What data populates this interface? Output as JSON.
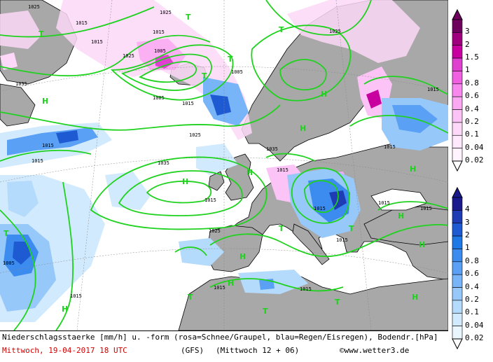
{
  "footer": {
    "title": "Niederschlagsstaerke [mm/h] u. -form (rosa=Schnee/Graupel, blau=Regen/Eisregen), Bodendr.[hPa]",
    "date": "Mittwoch, 19-04-2017  18 UTC",
    "model": "(GFS)",
    "run": "(Mittwoch 12 + 06)",
    "copyright": "©www.wetter3.de"
  },
  "legend_snow": {
    "labels": [
      "3",
      "2",
      "1.5",
      "1",
      "0.8",
      "0.6",
      "0.4",
      "0.2",
      "0.1",
      "0.04",
      "0.02"
    ],
    "colors": [
      "#6e005e",
      "#a0007e",
      "#c800a0",
      "#e040d0",
      "#f060e0",
      "#f888ee",
      "#faa8f2",
      "#fcc4f6",
      "#fdd8f8",
      "#fee8fb",
      "#fff4fd"
    ]
  },
  "legend_rain": {
    "labels": [
      "4",
      "3",
      "2",
      "1",
      "0.8",
      "0.6",
      "0.4",
      "0.2",
      "0.1",
      "0.04",
      "0.02"
    ],
    "colors": [
      "#1a1a8c",
      "#1e3cb4",
      "#1e5ad2",
      "#1e78e6",
      "#3c8cf0",
      "#5aa0f5",
      "#78b4f8",
      "#96c8fa",
      "#b4dafc",
      "#d2eafd",
      "#eaf6fe"
    ]
  },
  "map": {
    "isobar_labels": [
      "1025",
      "1015",
      "1025",
      "1015",
      "1025",
      "1015",
      "1005",
      "1005",
      "1015",
      "1035",
      "1015",
      "1025",
      "1025",
      "1015",
      "1035",
      "1035",
      "1015",
      "1025",
      "1015",
      "1015",
      "1015",
      "1015",
      "1015",
      "1005",
      "1015",
      "1015",
      "1015",
      "1015",
      "1015",
      "1005"
    ],
    "pressure_centers": [
      "T",
      "T",
      "T",
      "T",
      "T",
      "H",
      "H",
      "H",
      "H",
      "H",
      "H",
      "H",
      "H",
      "T",
      "T",
      "T",
      "H",
      "H",
      "T",
      "H",
      "H",
      "T",
      "T"
    ]
  }
}
